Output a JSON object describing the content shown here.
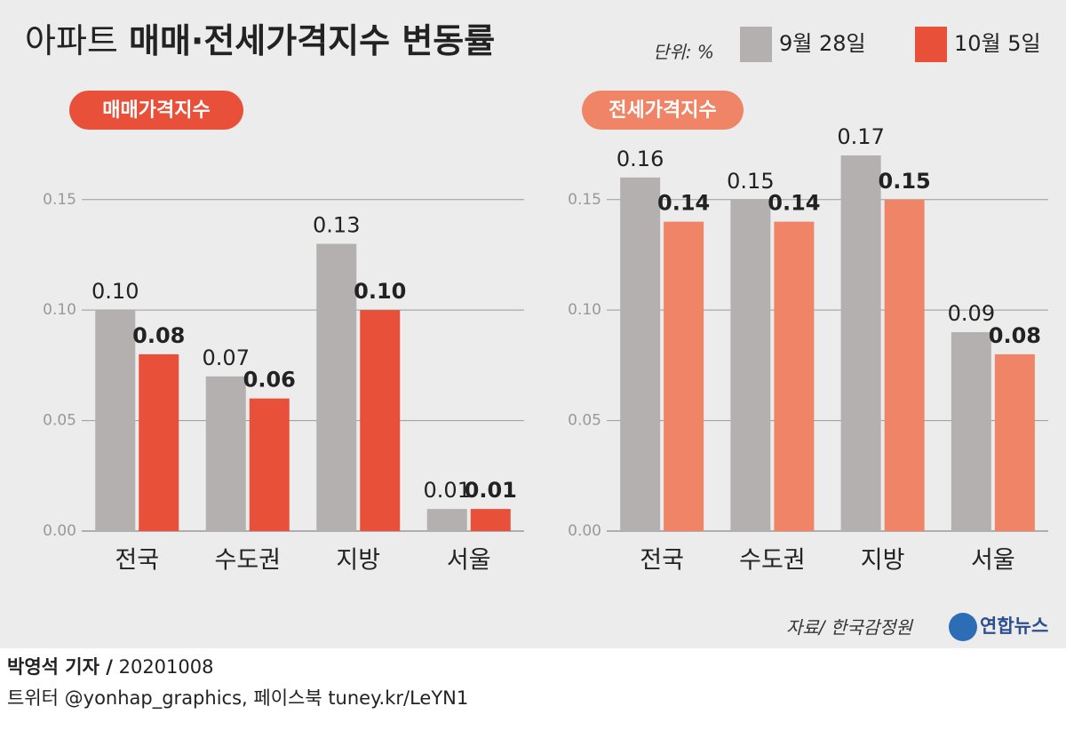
{
  "header": {
    "title_light": "아파트",
    "title_bold": "매매·전세가격지수 변동률",
    "unit": "단위: %"
  },
  "chart_data": [
    {
      "type": "bar",
      "title": "매매가격지수",
      "categories": [
        "전국",
        "수도권",
        "지방",
        "서울"
      ],
      "series": [
        {
          "name": "9월 28일",
          "color": "#b4b0b0",
          "values": [
            0.1,
            0.07,
            0.13,
            0.01
          ],
          "value_labels": [
            "0.10",
            "0.07",
            "0.13",
            "0.01"
          ]
        },
        {
          "name": "10월 5일",
          "color": "#e8503a",
          "values": [
            0.08,
            0.06,
            0.1,
            0.01
          ],
          "value_labels": [
            "0.08",
            "0.06",
            "0.10",
            "0.01"
          ]
        }
      ],
      "ylim": [
        0,
        0.17
      ],
      "yticks": [
        {
          "value": 0,
          "label": "0.00"
        },
        0.05,
        {
          "value": 0.1,
          "label": "0.10"
        },
        0.15
      ]
    },
    {
      "type": "bar",
      "title": "전세가격지수",
      "categories": [
        "전국",
        "수도권",
        "지방",
        "서울"
      ],
      "series": [
        {
          "name": "9월 28일",
          "color": "#b4b0b0",
          "values": [
            0.16,
            0.15,
            0.17,
            0.09
          ],
          "value_labels": [
            "0.16",
            "0.15",
            "0.17",
            "0.09"
          ]
        },
        {
          "name": "10월 5일",
          "color": "#f08466",
          "values": [
            0.14,
            0.14,
            0.15,
            0.08
          ],
          "value_labels": [
            "0.14",
            "0.14",
            "0.15",
            "0.08"
          ]
        }
      ],
      "ylim": [
        0,
        0.17
      ],
      "yticks": [
        {
          "value": 0,
          "label": "0.00"
        },
        0.05,
        {
          "value": 0.1,
          "label": "0.10"
        },
        0.15
      ]
    }
  ],
  "source": "자료/ 한국감정원",
  "logo": "연합뉴스",
  "footer": {
    "byline": "박영석 기자 /",
    "date": "20201008",
    "social": "트위터 @yonhap_graphics, 페이스북 tuney.kr/LeYN1"
  }
}
